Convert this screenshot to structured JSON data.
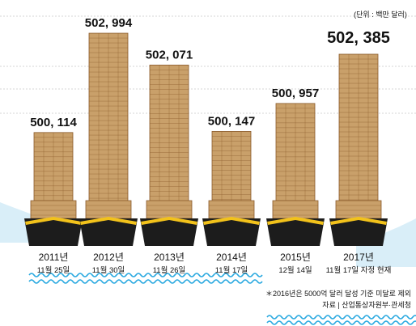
{
  "unit_note": "(단위 : 백만 달러)",
  "footnote": "＊2016년은 5000억 달러 달성 기준 미달로 제외",
  "source": "자료 | 산업통상자원부·관세청",
  "colors": {
    "background": "#ffffff",
    "water": "#bfe3f3",
    "wave": "#2aa9e0",
    "hull": "#1c1c1c",
    "hull_stripe": "#f2c21b",
    "container": "#c9a06a",
    "container_line": "#8a5a2b",
    "gridline": "#d6d6d6",
    "text": "#111111"
  },
  "chart_data": {
    "type": "bar",
    "title": "",
    "xlabel": "",
    "ylabel": "",
    "ylim": [
      499500,
      503300
    ],
    "grid": true,
    "value_labels": [
      "500, 114",
      "502, 994",
      "502, 071",
      "500, 147",
      "500, 957",
      "502, 385"
    ],
    "years": [
      "2011년",
      "2012년",
      "2013년",
      "2014년",
      "2015년",
      "2017년"
    ],
    "dates": [
      "11월 25일",
      "11월 30일",
      "11월 26일",
      "11월 17일",
      "12월 14일",
      "11월 17일 자정 현재"
    ],
    "categories": [
      "2011년 11월 25일",
      "2012년 11월 30일",
      "2013년 11월 26일",
      "2014년 11월 17일",
      "2015년 12월 14일",
      "2017년 11월 17일 자정 현재"
    ],
    "values": [
      500114,
      502994,
      502071,
      500147,
      500957,
      502385
    ]
  }
}
